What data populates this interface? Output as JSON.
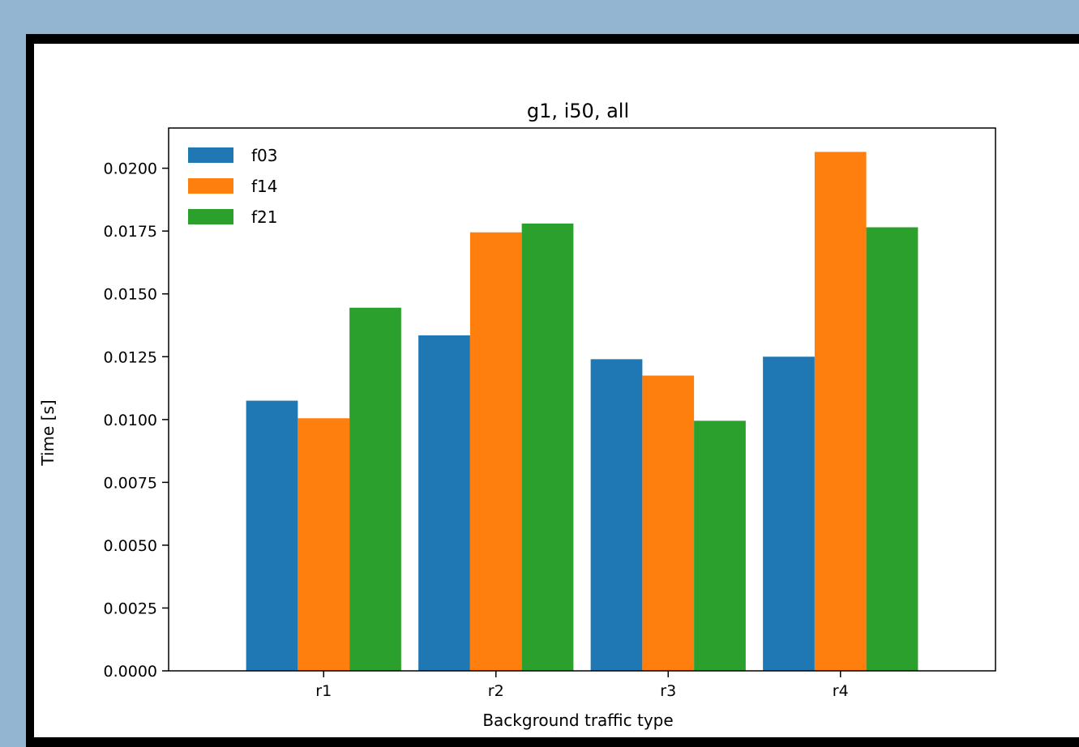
{
  "chart_data": {
    "type": "bar",
    "title": "g1, i50, all",
    "xlabel": "Background traffic type",
    "ylabel": "Time [s]",
    "categories": [
      "r1",
      "r2",
      "r3",
      "r4"
    ],
    "series": [
      {
        "name": "f03",
        "color": "#1f77b4",
        "values": [
          0.01075,
          0.01335,
          0.0124,
          0.0125
        ]
      },
      {
        "name": "f14",
        "color": "#ff7f0e",
        "values": [
          0.01005,
          0.01745,
          0.01175,
          0.02065
        ]
      },
      {
        "name": "f21",
        "color": "#2ca02c",
        "values": [
          0.01445,
          0.0178,
          0.00995,
          0.01765
        ]
      }
    ],
    "ylim": [
      0,
      0.0216
    ],
    "yticks": [
      "0.0000",
      "0.0025",
      "0.0050",
      "0.0075",
      "0.0100",
      "0.0125",
      "0.0150",
      "0.0175",
      "0.0200"
    ],
    "legend_position": "top-left",
    "grid": false
  }
}
